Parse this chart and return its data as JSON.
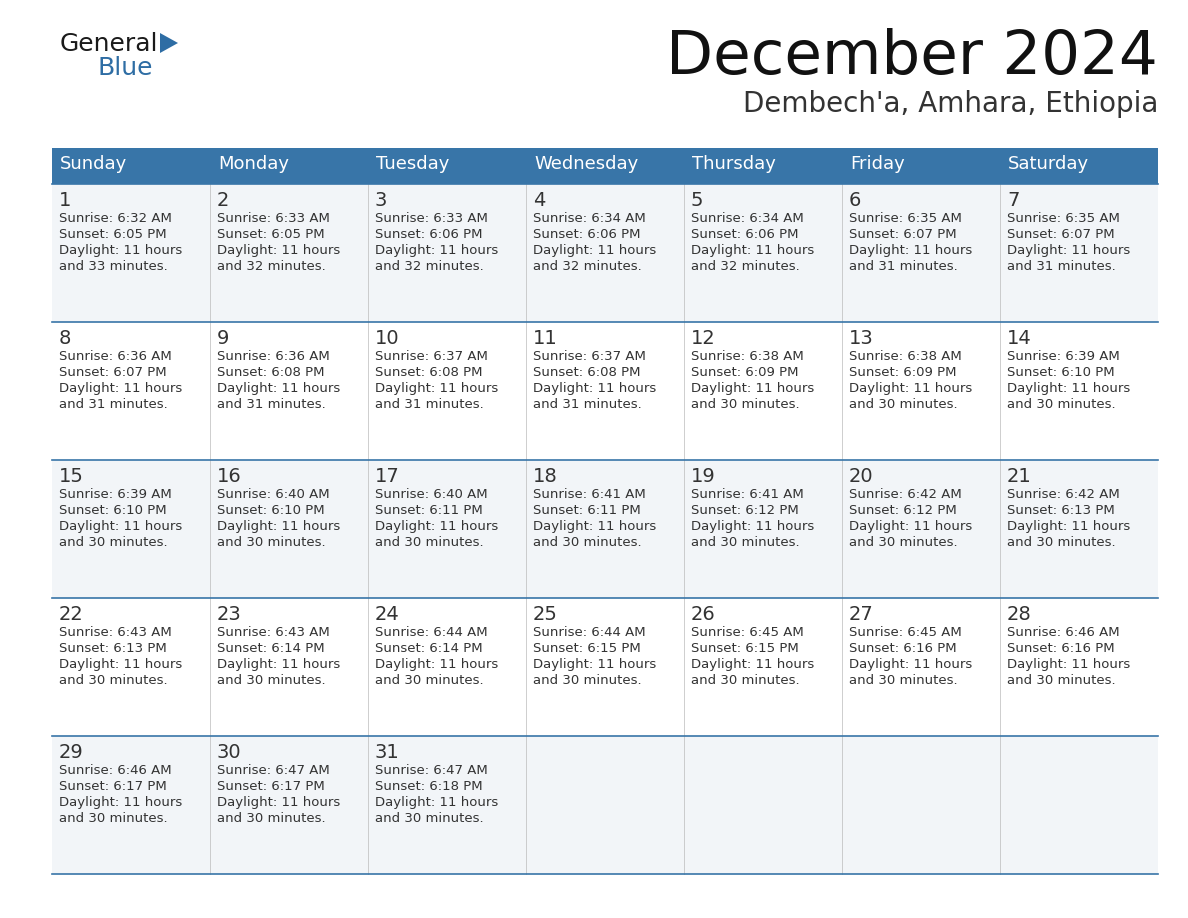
{
  "title": "December 2024",
  "subtitle": "Dembech'a, Amhara, Ethiopia",
  "header_bg_color": "#3875a8",
  "header_text_color": "#ffffff",
  "border_color": "#3875a8",
  "cell_bg_odd": "#f2f5f8",
  "cell_bg_even": "#ffffff",
  "text_color": "#333333",
  "days_of_week": [
    "Sunday",
    "Monday",
    "Tuesday",
    "Wednesday",
    "Thursday",
    "Friday",
    "Saturday"
  ],
  "weeks": [
    [
      {
        "day": 1,
        "sunrise": "6:32 AM",
        "sunset": "6:05 PM",
        "daylight_hours": 11,
        "daylight_minutes": 33
      },
      {
        "day": 2,
        "sunrise": "6:33 AM",
        "sunset": "6:05 PM",
        "daylight_hours": 11,
        "daylight_minutes": 32
      },
      {
        "day": 3,
        "sunrise": "6:33 AM",
        "sunset": "6:06 PM",
        "daylight_hours": 11,
        "daylight_minutes": 32
      },
      {
        "day": 4,
        "sunrise": "6:34 AM",
        "sunset": "6:06 PM",
        "daylight_hours": 11,
        "daylight_minutes": 32
      },
      {
        "day": 5,
        "sunrise": "6:34 AM",
        "sunset": "6:06 PM",
        "daylight_hours": 11,
        "daylight_minutes": 32
      },
      {
        "day": 6,
        "sunrise": "6:35 AM",
        "sunset": "6:07 PM",
        "daylight_hours": 11,
        "daylight_minutes": 31
      },
      {
        "day": 7,
        "sunrise": "6:35 AM",
        "sunset": "6:07 PM",
        "daylight_hours": 11,
        "daylight_minutes": 31
      }
    ],
    [
      {
        "day": 8,
        "sunrise": "6:36 AM",
        "sunset": "6:07 PM",
        "daylight_hours": 11,
        "daylight_minutes": 31
      },
      {
        "day": 9,
        "sunrise": "6:36 AM",
        "sunset": "6:08 PM",
        "daylight_hours": 11,
        "daylight_minutes": 31
      },
      {
        "day": 10,
        "sunrise": "6:37 AM",
        "sunset": "6:08 PM",
        "daylight_hours": 11,
        "daylight_minutes": 31
      },
      {
        "day": 11,
        "sunrise": "6:37 AM",
        "sunset": "6:08 PM",
        "daylight_hours": 11,
        "daylight_minutes": 31
      },
      {
        "day": 12,
        "sunrise": "6:38 AM",
        "sunset": "6:09 PM",
        "daylight_hours": 11,
        "daylight_minutes": 30
      },
      {
        "day": 13,
        "sunrise": "6:38 AM",
        "sunset": "6:09 PM",
        "daylight_hours": 11,
        "daylight_minutes": 30
      },
      {
        "day": 14,
        "sunrise": "6:39 AM",
        "sunset": "6:10 PM",
        "daylight_hours": 11,
        "daylight_minutes": 30
      }
    ],
    [
      {
        "day": 15,
        "sunrise": "6:39 AM",
        "sunset": "6:10 PM",
        "daylight_hours": 11,
        "daylight_minutes": 30
      },
      {
        "day": 16,
        "sunrise": "6:40 AM",
        "sunset": "6:10 PM",
        "daylight_hours": 11,
        "daylight_minutes": 30
      },
      {
        "day": 17,
        "sunrise": "6:40 AM",
        "sunset": "6:11 PM",
        "daylight_hours": 11,
        "daylight_minutes": 30
      },
      {
        "day": 18,
        "sunrise": "6:41 AM",
        "sunset": "6:11 PM",
        "daylight_hours": 11,
        "daylight_minutes": 30
      },
      {
        "day": 19,
        "sunrise": "6:41 AM",
        "sunset": "6:12 PM",
        "daylight_hours": 11,
        "daylight_minutes": 30
      },
      {
        "day": 20,
        "sunrise": "6:42 AM",
        "sunset": "6:12 PM",
        "daylight_hours": 11,
        "daylight_minutes": 30
      },
      {
        "day": 21,
        "sunrise": "6:42 AM",
        "sunset": "6:13 PM",
        "daylight_hours": 11,
        "daylight_minutes": 30
      }
    ],
    [
      {
        "day": 22,
        "sunrise": "6:43 AM",
        "sunset": "6:13 PM",
        "daylight_hours": 11,
        "daylight_minutes": 30
      },
      {
        "day": 23,
        "sunrise": "6:43 AM",
        "sunset": "6:14 PM",
        "daylight_hours": 11,
        "daylight_minutes": 30
      },
      {
        "day": 24,
        "sunrise": "6:44 AM",
        "sunset": "6:14 PM",
        "daylight_hours": 11,
        "daylight_minutes": 30
      },
      {
        "day": 25,
        "sunrise": "6:44 AM",
        "sunset": "6:15 PM",
        "daylight_hours": 11,
        "daylight_minutes": 30
      },
      {
        "day": 26,
        "sunrise": "6:45 AM",
        "sunset": "6:15 PM",
        "daylight_hours": 11,
        "daylight_minutes": 30
      },
      {
        "day": 27,
        "sunrise": "6:45 AM",
        "sunset": "6:16 PM",
        "daylight_hours": 11,
        "daylight_minutes": 30
      },
      {
        "day": 28,
        "sunrise": "6:46 AM",
        "sunset": "6:16 PM",
        "daylight_hours": 11,
        "daylight_minutes": 30
      }
    ],
    [
      {
        "day": 29,
        "sunrise": "6:46 AM",
        "sunset": "6:17 PM",
        "daylight_hours": 11,
        "daylight_minutes": 30
      },
      {
        "day": 30,
        "sunrise": "6:47 AM",
        "sunset": "6:17 PM",
        "daylight_hours": 11,
        "daylight_minutes": 30
      },
      {
        "day": 31,
        "sunrise": "6:47 AM",
        "sunset": "6:18 PM",
        "daylight_hours": 11,
        "daylight_minutes": 30
      },
      null,
      null,
      null,
      null
    ]
  ],
  "logo_text_color": "#1a1a1a",
  "logo_blue_color": "#2e6da4",
  "title_fontsize": 44,
  "subtitle_fontsize": 20,
  "header_fontsize": 13,
  "day_num_fontsize": 14,
  "cell_text_fontsize": 9.5
}
